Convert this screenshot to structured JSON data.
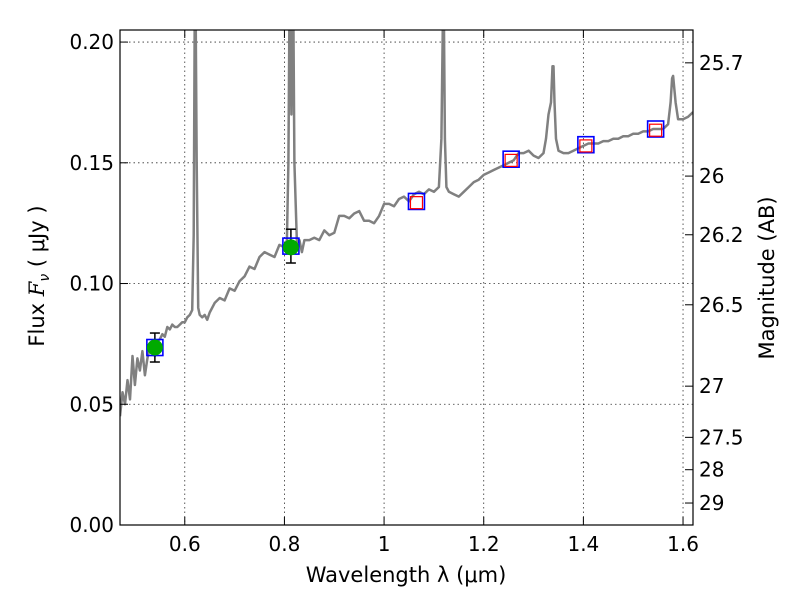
{
  "chart_data": {
    "type": "line",
    "xlabel": "Wavelength  λ (μm)",
    "ylabel_left": {
      "prefix": "Flux  ",
      "symbol": "F",
      "subscript": "ν",
      "unit": "  ( μJy )"
    },
    "ylabel_right": "Magnitude (AB)",
    "xlim": [
      0.47,
      1.62
    ],
    "ylim": [
      0.0,
      0.205
    ],
    "x_ticks": [
      {
        "v": 0.6,
        "label": "0.6"
      },
      {
        "v": 0.8,
        "label": "0.8"
      },
      {
        "v": 1.0,
        "label": "1"
      },
      {
        "v": 1.2,
        "label": "1.2"
      },
      {
        "v": 1.4,
        "label": "1.4"
      },
      {
        "v": 1.6,
        "label": "1.6"
      }
    ],
    "y_ticks": [
      {
        "v": 0.0,
        "label": "0.00"
      },
      {
        "v": 0.05,
        "label": "0.05"
      },
      {
        "v": 0.1,
        "label": "0.10"
      },
      {
        "v": 0.15,
        "label": "0.15"
      },
      {
        "v": 0.2,
        "label": "0.20"
      }
    ],
    "mag_ticks": [
      {
        "v": 0.1914,
        "label": "25.7"
      },
      {
        "v": 0.1445,
        "label": "26"
      },
      {
        "v": 0.1202,
        "label": "26.2"
      },
      {
        "v": 0.0912,
        "label": "26.5"
      },
      {
        "v": 0.0575,
        "label": "27"
      },
      {
        "v": 0.0363,
        "label": "27.5"
      },
      {
        "v": 0.0229,
        "label": "28"
      },
      {
        "v": 0.0091,
        "label": "29"
      }
    ],
    "grid": true,
    "series": [
      {
        "style": "spectrum",
        "color": "#808080",
        "x": [
          0.47,
          0.475,
          0.48,
          0.485,
          0.49,
          0.495,
          0.5,
          0.505,
          0.51,
          0.515,
          0.52,
          0.525,
          0.53,
          0.535,
          0.54,
          0.545,
          0.55,
          0.555,
          0.56,
          0.565,
          0.57,
          0.575,
          0.58,
          0.585,
          0.59,
          0.595,
          0.6,
          0.605,
          0.61,
          0.615,
          0.618,
          0.62,
          0.622,
          0.624,
          0.627,
          0.63,
          0.635,
          0.64,
          0.645,
          0.65,
          0.66,
          0.67,
          0.68,
          0.69,
          0.7,
          0.71,
          0.72,
          0.73,
          0.74,
          0.75,
          0.76,
          0.77,
          0.78,
          0.79,
          0.8,
          0.805,
          0.808,
          0.81,
          0.812,
          0.814,
          0.816,
          0.818,
          0.82,
          0.825,
          0.83,
          0.835,
          0.84,
          0.85,
          0.86,
          0.87,
          0.88,
          0.89,
          0.9,
          0.91,
          0.92,
          0.93,
          0.94,
          0.95,
          0.96,
          0.97,
          0.98,
          0.99,
          1.0,
          1.01,
          1.02,
          1.03,
          1.04,
          1.05,
          1.06,
          1.07,
          1.08,
          1.09,
          1.1,
          1.11,
          1.115,
          1.118,
          1.12,
          1.122,
          1.125,
          1.13,
          1.14,
          1.15,
          1.16,
          1.17,
          1.18,
          1.19,
          1.2,
          1.21,
          1.22,
          1.23,
          1.24,
          1.25,
          1.26,
          1.27,
          1.28,
          1.29,
          1.3,
          1.31,
          1.32,
          1.325,
          1.33,
          1.335,
          1.338,
          1.34,
          1.342,
          1.345,
          1.35,
          1.36,
          1.37,
          1.38,
          1.39,
          1.4,
          1.41,
          1.42,
          1.43,
          1.44,
          1.45,
          1.46,
          1.47,
          1.48,
          1.49,
          1.5,
          1.51,
          1.52,
          1.53,
          1.54,
          1.55,
          1.56,
          1.565,
          1.57,
          1.575,
          1.578,
          1.58,
          1.585,
          1.59,
          1.6,
          1.61,
          1.62
        ],
        "y": [
          0.045,
          0.055,
          0.05,
          0.06,
          0.052,
          0.07,
          0.058,
          0.069,
          0.064,
          0.072,
          0.062,
          0.069,
          0.074,
          0.072,
          0.07,
          0.076,
          0.077,
          0.079,
          0.078,
          0.082,
          0.081,
          0.083,
          0.082,
          0.082,
          0.083,
          0.084,
          0.084,
          0.086,
          0.087,
          0.089,
          0.12,
          0.21,
          0.21,
          0.15,
          0.09,
          0.087,
          0.086,
          0.087,
          0.085,
          0.088,
          0.092,
          0.094,
          0.093,
          0.098,
          0.097,
          0.101,
          0.103,
          0.107,
          0.106,
          0.111,
          0.113,
          0.112,
          0.111,
          0.116,
          0.115,
          0.118,
          0.15,
          0.21,
          0.21,
          0.17,
          0.21,
          0.21,
          0.15,
          0.117,
          0.118,
          0.113,
          0.118,
          0.118,
          0.119,
          0.118,
          0.122,
          0.12,
          0.121,
          0.128,
          0.128,
          0.127,
          0.129,
          0.13,
          0.126,
          0.126,
          0.125,
          0.128,
          0.133,
          0.133,
          0.132,
          0.135,
          0.136,
          0.134,
          0.137,
          0.138,
          0.137,
          0.139,
          0.138,
          0.14,
          0.16,
          0.21,
          0.21,
          0.16,
          0.14,
          0.138,
          0.137,
          0.136,
          0.138,
          0.14,
          0.142,
          0.143,
          0.145,
          0.146,
          0.147,
          0.148,
          0.149,
          0.15,
          0.151,
          0.154,
          0.154,
          0.155,
          0.153,
          0.152,
          0.154,
          0.16,
          0.17,
          0.175,
          0.19,
          0.19,
          0.175,
          0.16,
          0.155,
          0.154,
          0.154,
          0.155,
          0.156,
          0.157,
          0.158,
          0.158,
          0.158,
          0.159,
          0.159,
          0.16,
          0.16,
          0.161,
          0.161,
          0.162,
          0.162,
          0.163,
          0.163,
          0.164,
          0.164,
          0.164,
          0.165,
          0.166,
          0.175,
          0.185,
          0.186,
          0.175,
          0.168,
          0.168,
          0.169,
          0.171
        ]
      },
      {
        "style": "model-photometry",
        "marker": "square",
        "color": "#0000ff",
        "x": [
          0.54,
          0.813,
          1.065,
          1.255,
          1.405,
          1.545
        ],
        "y": [
          0.0735,
          0.1155,
          0.134,
          0.1515,
          0.1575,
          0.164
        ]
      },
      {
        "style": "observed-photometry",
        "marker": "circle",
        "color": "#00aa00",
        "x": [
          0.54,
          0.813
        ],
        "y": [
          0.0735,
          0.115
        ],
        "err_low": [
          0.0675,
          0.1085
        ],
        "err_high": [
          0.0795,
          0.1225
        ]
      },
      {
        "style": "upper-points",
        "marker": "open-square",
        "color": "#ff0000",
        "x": [
          1.065,
          1.255,
          1.405,
          1.545
        ],
        "y": [
          0.1335,
          0.151,
          0.157,
          0.1635
        ]
      }
    ]
  }
}
